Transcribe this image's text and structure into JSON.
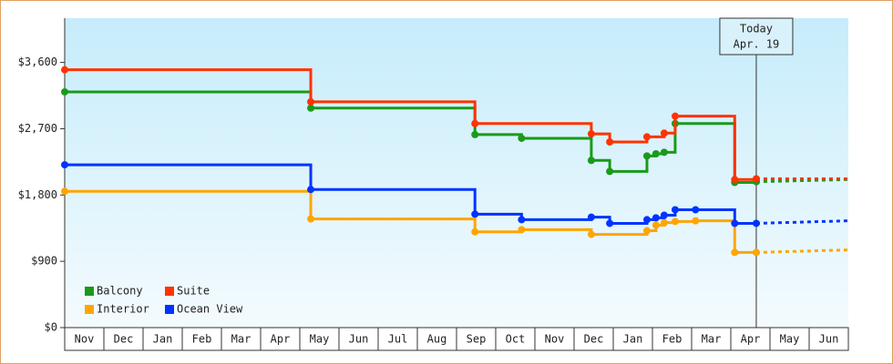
{
  "chart_data": {
    "type": "step-line",
    "categories": [
      "Nov",
      "Dec",
      "Jan",
      "Feb",
      "Mar",
      "Apr",
      "May",
      "Jun",
      "Jul",
      "Aug",
      "Sep",
      "Oct",
      "Nov",
      "Dec",
      "Jan",
      "Feb",
      "Mar",
      "Apr",
      "May",
      "Jun"
    ],
    "xlim": [
      0,
      20
    ],
    "ylim": [
      0,
      4200
    ],
    "yticks": [
      {
        "value": 0,
        "label": "$0"
      },
      {
        "value": 900,
        "label": "$900"
      },
      {
        "value": 1800,
        "label": "$1,800"
      },
      {
        "value": 2700,
        "label": "$2,700"
      },
      {
        "value": 3600,
        "label": "$3,600"
      }
    ],
    "today": {
      "x": 17.65,
      "label": "Today",
      "date": "Apr. 19"
    },
    "legend": "lower left",
    "series": [
      {
        "name": "Balcony",
        "color": "#1a9a1a",
        "x": [
          0,
          6.28,
          10.47,
          11.66,
          13.44,
          13.91,
          14.86,
          15.09,
          15.3,
          15.58,
          17.1,
          17.65,
          20
        ],
        "values": [
          3200,
          2980,
          2620,
          2570,
          2270,
          2120,
          2330,
          2360,
          2380,
          2770,
          1970,
          1980,
          2010
        ]
      },
      {
        "name": "Suite",
        "color": "#ff3300",
        "x": [
          0,
          6.28,
          10.47,
          13.44,
          13.91,
          14.86,
          15.3,
          15.58,
          17.1,
          17.65,
          20
        ],
        "values": [
          3500,
          3065,
          2770,
          2630,
          2520,
          2590,
          2640,
          2870,
          2010,
          2020,
          2020
        ]
      },
      {
        "name": "Interior",
        "color": "#ffa500",
        "x": [
          0,
          6.28,
          10.47,
          11.66,
          13.44,
          14.86,
          15.09,
          15.3,
          15.58,
          16.1,
          17.1,
          17.65,
          20
        ],
        "values": [
          1850,
          1475,
          1300,
          1330,
          1265,
          1315,
          1390,
          1425,
          1440,
          1450,
          1020,
          1020,
          1055
        ]
      },
      {
        "name": "Ocean View",
        "color": "#0033ff",
        "x": [
          0,
          6.28,
          10.47,
          11.66,
          13.44,
          13.91,
          14.86,
          15.09,
          15.3,
          15.58,
          16.1,
          17.1,
          17.65,
          20
        ],
        "values": [
          2210,
          1875,
          1540,
          1465,
          1500,
          1415,
          1465,
          1490,
          1525,
          1600,
          1600,
          1415,
          1415,
          1450
        ]
      }
    ]
  }
}
